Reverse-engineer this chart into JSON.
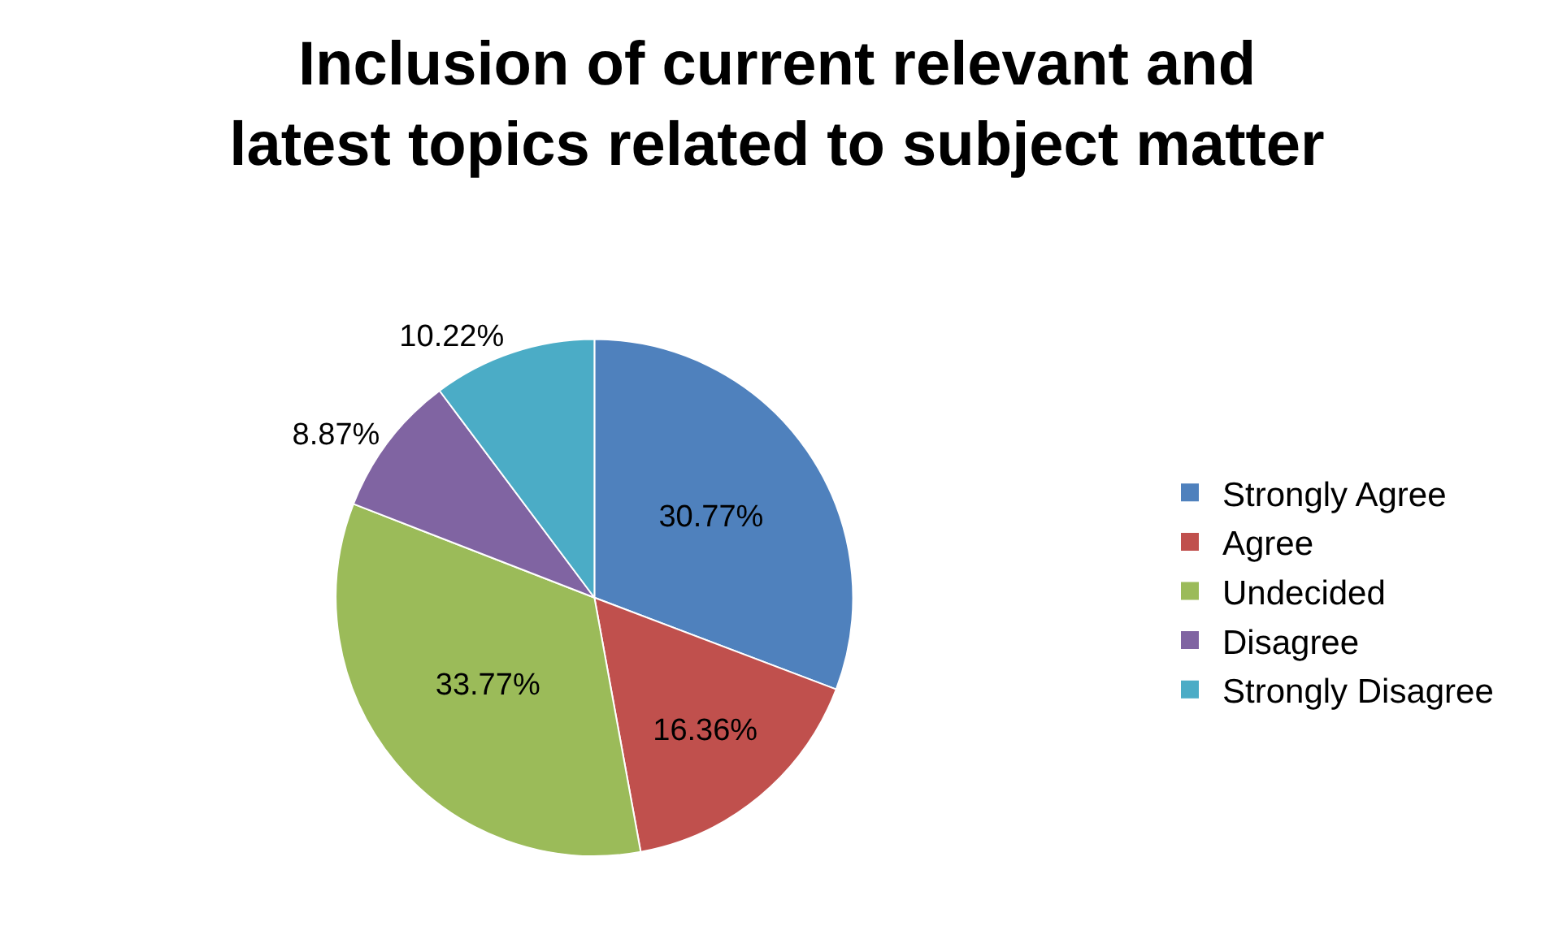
{
  "chart_data": {
    "type": "pie",
    "title": "Inclusion of current relevant and latest topics related to subject matter",
    "categories": [
      "Strongly Agree",
      "Agree",
      "Undecided",
      "Disagree",
      "Strongly Disagree"
    ],
    "values": [
      30.77,
      16.36,
      33.77,
      8.87,
      10.22
    ],
    "value_labels": [
      "30.77%",
      "16.36%",
      "33.77%",
      "8.87%",
      "10.22%"
    ],
    "colors": [
      "#4f81bd",
      "#c0504d",
      "#9bbb59",
      "#8064a2",
      "#4bacc6"
    ],
    "legend": "right"
  }
}
